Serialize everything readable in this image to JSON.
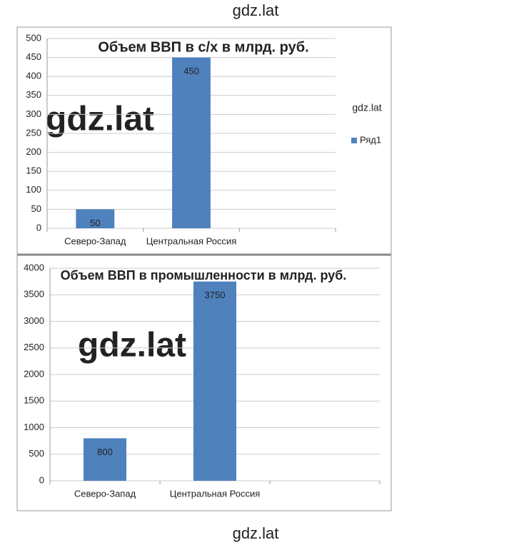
{
  "watermarks": [
    "gdz.lat",
    "gdz.lat",
    "gdz.lat",
    "gdz.lat",
    "gdz.lat"
  ],
  "chart_data": [
    {
      "type": "bar",
      "title": "Объем ВВП в с/х в млрд. руб.",
      "categories": [
        "Северо-Запад",
        "Центральная Россия",
        null
      ],
      "series": [
        {
          "name": "Ряд1",
          "color": "#4f81bd",
          "values": [
            50,
            450,
            null
          ]
        }
      ],
      "ylim": [
        0,
        500
      ],
      "yticks": [
        0,
        50,
        100,
        150,
        200,
        250,
        300,
        350,
        400,
        450,
        500
      ],
      "grid": true,
      "legend": "right"
    },
    {
      "type": "bar",
      "title": "Объем ВВП в промышленности в млрд. руб.",
      "categories": [
        "Северо-Запад",
        "Центральная Россия",
        null
      ],
      "series": [
        {
          "color": "#4f81bd",
          "values": [
            800,
            3750,
            null
          ]
        }
      ],
      "ylim": [
        0,
        4000
      ],
      "yticks": [
        0,
        500,
        1000,
        1500,
        2000,
        2500,
        3000,
        3500,
        4000
      ],
      "grid": true
    }
  ]
}
